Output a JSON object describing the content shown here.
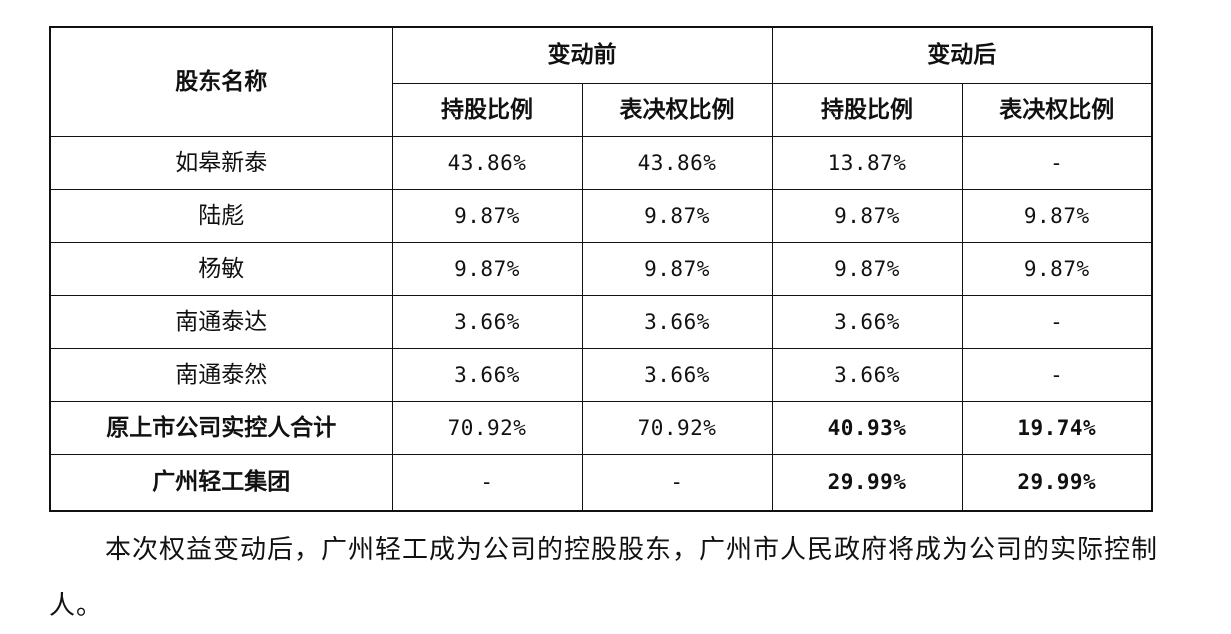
{
  "table": {
    "header": {
      "name_col": "股东名称",
      "group_before": "变动前",
      "group_after": "变动后",
      "sub_cols": [
        "持股比例",
        "表决权比例",
        "持股比例",
        "表决权比例"
      ]
    },
    "rows": [
      {
        "name": "如皋新泰",
        "values": [
          "43.86%",
          "43.86%",
          "13.87%",
          "-"
        ],
        "bold_name": false,
        "bold_values": [
          false,
          false,
          false,
          false
        ]
      },
      {
        "name": "陆彪",
        "values": [
          "9.87%",
          "9.87%",
          "9.87%",
          "9.87%"
        ],
        "bold_name": false,
        "bold_values": [
          false,
          false,
          false,
          false
        ]
      },
      {
        "name": "杨敏",
        "values": [
          "9.87%",
          "9.87%",
          "9.87%",
          "9.87%"
        ],
        "bold_name": false,
        "bold_values": [
          false,
          false,
          false,
          false
        ]
      },
      {
        "name": "南通泰达",
        "values": [
          "3.66%",
          "3.66%",
          "3.66%",
          "-"
        ],
        "bold_name": false,
        "bold_values": [
          false,
          false,
          false,
          false
        ]
      },
      {
        "name": "南通泰然",
        "values": [
          "3.66%",
          "3.66%",
          "3.66%",
          "-"
        ],
        "bold_name": false,
        "bold_values": [
          false,
          false,
          false,
          false
        ]
      },
      {
        "name": "原上市公司实控人合计",
        "values": [
          "70.92%",
          "70.92%",
          "40.93%",
          "19.74%"
        ],
        "bold_name": true,
        "bold_values": [
          false,
          false,
          true,
          true
        ]
      },
      {
        "name": "广州轻工集团",
        "values": [
          "-",
          "-",
          "29.99%",
          "29.99%"
        ],
        "bold_name": true,
        "bold_values": [
          false,
          false,
          true,
          true
        ]
      }
    ]
  },
  "paragraph": "本次权益变动后，广州轻工成为公司的控股股东，广州市人民政府将成为公司的实际控制人。"
}
